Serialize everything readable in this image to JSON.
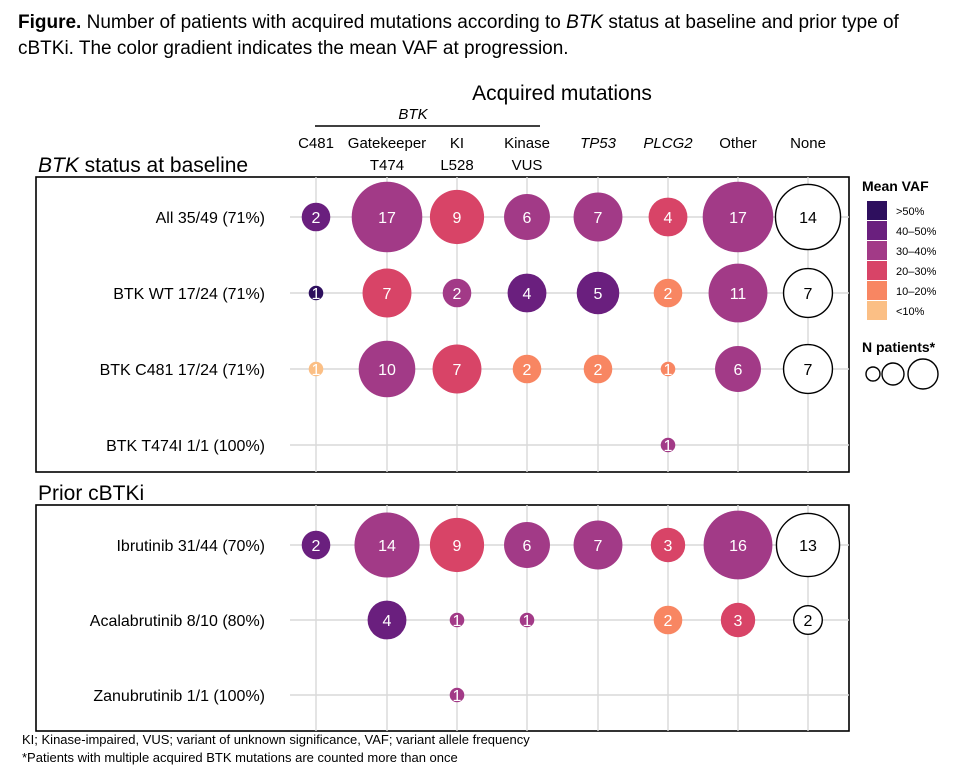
{
  "caption": {
    "label": "Figure.",
    "text_a": " Number of patients with acquired mutations according to ",
    "gene": "BTK",
    "text_b": " status at baseline and prior type of cBTKi. The color gradient indicates the mean VAF at progression."
  },
  "chart_data": {
    "type": "bubble",
    "title": "Acquired mutations",
    "group_label": "BTK",
    "columns": [
      {
        "line1": "C481",
        "line2": "",
        "italic": false
      },
      {
        "line1": "Gatekeeper",
        "line2": "T474",
        "italic": false
      },
      {
        "line1": "KI",
        "line2": "L528",
        "italic": false
      },
      {
        "line1": "Kinase",
        "line2": "VUS",
        "italic": false
      },
      {
        "line1": "TP53",
        "line2": "",
        "italic": true
      },
      {
        "line1": "PLCG2",
        "line2": "",
        "italic": true
      },
      {
        "line1": "Other",
        "line2": "",
        "italic": false
      },
      {
        "line1": "None",
        "line2": "",
        "italic": false
      }
    ],
    "vaf_categories": [
      ">50%",
      "40–50%",
      "30–40%",
      "20–30%",
      "10–20%",
      "<10%"
    ],
    "vaf_colors": [
      "#2e0f5e",
      "#6a1f7e",
      "#a23a87",
      "#d84467",
      "#f88662",
      "#fbbf85"
    ],
    "panels": [
      {
        "title_gene": "BTK",
        "title_rest": " status at baseline",
        "rows": [
          {
            "label": "All 35/49 (71%)",
            "cells": [
              [
                2,
                1
              ],
              [
                17,
                2
              ],
              [
                9,
                3
              ],
              [
                6,
                2
              ],
              [
                7,
                2
              ],
              [
                4,
                3
              ],
              [
                17,
                2
              ],
              [
                14,
                null
              ]
            ]
          },
          {
            "label": "BTK WT 17/24 (71%)",
            "cells": [
              [
                1,
                0
              ],
              [
                7,
                3
              ],
              [
                2,
                2
              ],
              [
                4,
                1
              ],
              [
                5,
                1
              ],
              [
                2,
                4
              ],
              [
                11,
                2
              ],
              [
                7,
                null
              ]
            ]
          },
          {
            "label": "BTK C481 17/24 (71%)",
            "cells": [
              [
                1,
                5
              ],
              [
                10,
                2
              ],
              [
                7,
                3
              ],
              [
                2,
                4
              ],
              [
                2,
                4
              ],
              [
                1,
                4
              ],
              [
                6,
                2
              ],
              [
                7,
                null
              ]
            ]
          },
          {
            "label": "BTK T474I 1/1 (100%)",
            "cells": [
              null,
              null,
              null,
              null,
              null,
              [
                1,
                2
              ],
              null,
              null
            ]
          }
        ]
      },
      {
        "title_gene": "",
        "title_rest": "Prior cBTKi",
        "rows": [
          {
            "label": "Ibrutinib 31/44 (70%)",
            "cells": [
              [
                2,
                1
              ],
              [
                14,
                2
              ],
              [
                9,
                3
              ],
              [
                6,
                2
              ],
              [
                7,
                2
              ],
              [
                3,
                3
              ],
              [
                16,
                2
              ],
              [
                13,
                null
              ]
            ]
          },
          {
            "label": "Acalabrutinib 8/10 (80%)",
            "cells": [
              null,
              [
                4,
                1
              ],
              [
                1,
                2
              ],
              [
                1,
                2
              ],
              null,
              [
                2,
                4
              ],
              [
                3,
                3
              ],
              [
                2,
                null
              ]
            ]
          },
          {
            "label": "Zanubrutinib 1/1 (100%)",
            "cells": [
              null,
              null,
              [
                1,
                2
              ],
              null,
              null,
              null,
              null,
              null
            ]
          }
        ]
      }
    ],
    "legend": {
      "vaf_title": "Mean VAF",
      "size_title": "N patients*"
    }
  },
  "footnotes": {
    "line1": "KI; Kinase-impaired, VUS; variant of unknown significance, VAF; variant allele frequency",
    "line2": "*Patients with multiple acquired BTK mutations are counted more than once"
  }
}
